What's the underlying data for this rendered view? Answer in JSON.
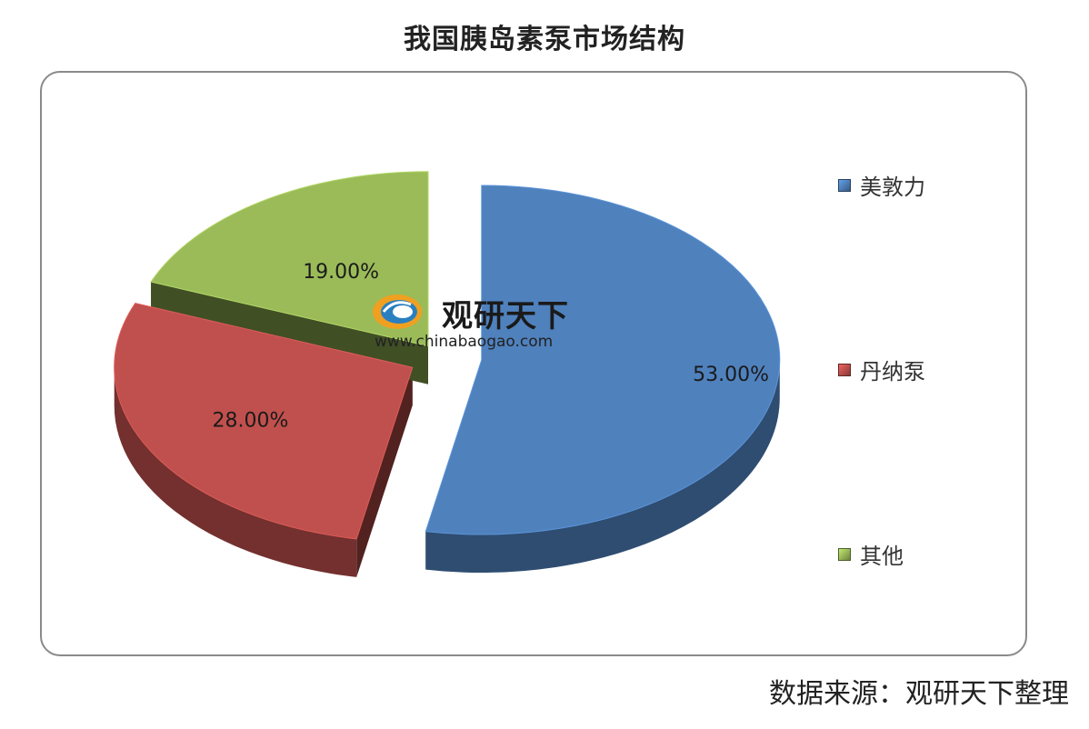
{
  "chart_data": {
    "type": "pie",
    "title": "我国胰岛素泵市场结构",
    "slices": [
      {
        "label": "美敦力",
        "value": 53.0,
        "value_label": "53.00%",
        "color": "#4f81bd"
      },
      {
        "label": "丹纳泵",
        "value": 28.0,
        "value_label": "28.00%",
        "color": "#c0504d"
      },
      {
        "label": "其他",
        "value": 19.0,
        "value_label": "19.00%",
        "color": "#9bbb59"
      }
    ],
    "legend_position": "right",
    "exploded": true,
    "style": "3d"
  },
  "watermark": {
    "name": "观研天下",
    "url": "www.chinabaogao.com"
  },
  "source_note": "数据来源：观研天下整理"
}
